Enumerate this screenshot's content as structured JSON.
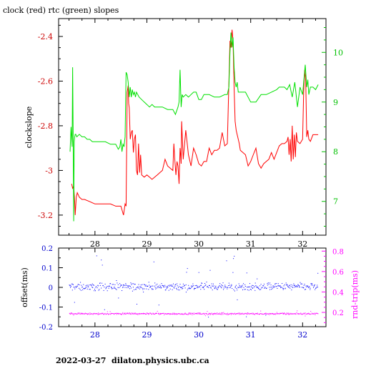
{
  "page": {
    "title": "clock (red) rtc (green) slopes",
    "footer": "2022-03-27  dilaton.physics.ubc.ca"
  },
  "colors": {
    "red": "#ff0000",
    "green": "#00e000",
    "blue": "#0000ff",
    "magenta": "#ff00ff",
    "axis": "#000000"
  },
  "chart_data": [
    {
      "type": "line",
      "title": "clock (red) rtc (green) slopes",
      "ylabel": "clockslope",
      "xlim": [
        27.3,
        32.45
      ],
      "ylim": [
        -3.29,
        -2.32
      ],
      "y2lim": [
        6.32,
        10.68
      ],
      "x_ticks": [
        28,
        29,
        30,
        31,
        32
      ],
      "y_ticks": [
        -3.2,
        -3,
        -2.8,
        -2.6,
        -2.4
      ],
      "y2_ticks": [
        7,
        8,
        9,
        10
      ],
      "grid": false,
      "series": [
        {
          "name": "clock",
          "color": "#ff0000",
          "axis": "left",
          "x": [
            27.55,
            27.57,
            27.59,
            27.61,
            27.62,
            27.64,
            27.66,
            27.68,
            27.7,
            27.75,
            27.8,
            27.9,
            28.0,
            28.1,
            28.2,
            28.3,
            28.4,
            28.5,
            28.55,
            28.58,
            28.6,
            28.62,
            28.64,
            28.65,
            28.66,
            28.68,
            28.7,
            28.72,
            28.74,
            28.76,
            28.78,
            28.8,
            28.82,
            28.84,
            28.86,
            28.88,
            28.9,
            28.95,
            29.0,
            29.05,
            29.1,
            29.2,
            29.25,
            29.3,
            29.35,
            29.4,
            29.45,
            29.5,
            29.52,
            29.54,
            29.56,
            29.58,
            29.6,
            29.62,
            29.64,
            29.65,
            29.66,
            29.67,
            29.7,
            29.75,
            29.8,
            29.85,
            29.9,
            29.95,
            30.0,
            30.05,
            30.1,
            30.15,
            30.2,
            30.25,
            30.3,
            30.35,
            30.4,
            30.45,
            30.5,
            30.55,
            30.6,
            30.62,
            30.64,
            30.66,
            30.68,
            30.7,
            30.72,
            30.74,
            30.76,
            30.78,
            30.8,
            30.85,
            30.9,
            30.95,
            31.0,
            31.05,
            31.1,
            31.15,
            31.2,
            31.25,
            31.3,
            31.35,
            31.4,
            31.45,
            31.5,
            31.55,
            31.6,
            31.65,
            31.7,
            31.72,
            31.74,
            31.76,
            31.78,
            31.8,
            31.82,
            31.84,
            31.86,
            31.88,
            31.9,
            31.95,
            32.0,
            32.02,
            32.04,
            32.06,
            32.08,
            32.1,
            32.12,
            32.15,
            32.2,
            32.25,
            32.3
          ],
          "values": [
            -3.06,
            -3.08,
            -3.07,
            -3.14,
            -3.2,
            -3.12,
            -3.1,
            -3.11,
            -3.12,
            -3.13,
            -3.13,
            -3.14,
            -3.15,
            -3.15,
            -3.15,
            -3.15,
            -3.16,
            -3.16,
            -3.2,
            -3.15,
            -3.16,
            -2.65,
            -2.62,
            -2.7,
            -2.72,
            -2.86,
            -2.83,
            -2.82,
            -2.92,
            -2.86,
            -2.84,
            -3.0,
            -3.02,
            -2.88,
            -3.01,
            -2.93,
            -3.02,
            -3.03,
            -3.02,
            -3.03,
            -3.04,
            -3.02,
            -3.01,
            -3.0,
            -2.95,
            -2.98,
            -2.99,
            -3.0,
            -2.88,
            -2.96,
            -3.02,
            -2.96,
            -2.98,
            -3.06,
            -2.9,
            -2.93,
            -2.97,
            -2.78,
            -2.95,
            -2.82,
            -2.93,
            -2.98,
            -2.9,
            -2.93,
            -2.97,
            -2.98,
            -2.96,
            -2.96,
            -2.9,
            -2.93,
            -2.91,
            -2.91,
            -2.9,
            -2.83,
            -2.89,
            -2.88,
            -2.42,
            -2.45,
            -2.37,
            -2.42,
            -2.63,
            -2.78,
            -2.82,
            -2.84,
            -2.86,
            -2.88,
            -2.91,
            -2.92,
            -2.93,
            -2.98,
            -2.96,
            -2.93,
            -2.9,
            -2.97,
            -2.99,
            -2.97,
            -2.96,
            -2.95,
            -2.92,
            -2.95,
            -2.92,
            -2.89,
            -2.88,
            -2.88,
            -2.87,
            -2.85,
            -2.93,
            -2.86,
            -2.96,
            -2.8,
            -2.95,
            -2.84,
            -2.94,
            -2.83,
            -2.87,
            -2.88,
            -2.86,
            -2.65,
            -2.55,
            -2.6,
            -2.85,
            -2.82,
            -2.86,
            -2.87,
            -2.84,
            -2.84,
            -2.84
          ]
        },
        {
          "name": "rtc",
          "color": "#00e000",
          "axis": "right",
          "x": [
            27.52,
            27.54,
            27.56,
            27.57,
            27.58,
            27.59,
            27.6,
            27.61,
            27.62,
            27.63,
            27.65,
            27.7,
            27.75,
            27.8,
            27.85,
            27.9,
            27.95,
            28.0,
            28.1,
            28.2,
            28.3,
            28.4,
            28.45,
            28.48,
            28.5,
            28.52,
            28.54,
            28.56,
            28.58,
            28.6,
            28.62,
            28.64,
            28.66,
            28.68,
            28.7,
            28.72,
            28.74,
            28.76,
            28.78,
            28.8,
            28.85,
            28.9,
            28.95,
            29.0,
            29.05,
            29.1,
            29.15,
            29.2,
            29.3,
            29.4,
            29.5,
            29.55,
            29.6,
            29.62,
            29.64,
            29.66,
            29.68,
            29.7,
            29.75,
            29.8,
            29.85,
            29.9,
            29.95,
            30.0,
            30.05,
            30.1,
            30.2,
            30.3,
            30.4,
            30.5,
            30.55,
            30.58,
            30.6,
            30.62,
            30.64,
            30.66,
            30.68,
            30.7,
            30.72,
            30.74,
            30.76,
            30.8,
            30.9,
            31.0,
            31.1,
            31.2,
            31.3,
            31.4,
            31.5,
            31.55,
            31.6,
            31.65,
            31.7,
            31.75,
            31.8,
            31.85,
            31.9,
            31.95,
            32.0,
            32.05,
            32.08,
            32.1,
            32.12,
            32.15,
            32.2,
            32.25,
            32.3
          ],
          "values": [
            8.0,
            8.5,
            8.1,
            9.7,
            8.4,
            6.6,
            8.2,
            8.3,
            8.35,
            8.35,
            8.3,
            8.35,
            8.3,
            8.3,
            8.25,
            8.25,
            8.2,
            8.2,
            8.2,
            8.2,
            8.15,
            8.15,
            8.05,
            8.1,
            8.25,
            8.0,
            8.15,
            8.1,
            8.3,
            9.6,
            9.55,
            9.4,
            9.1,
            9.3,
            9.1,
            9.25,
            9.15,
            9.2,
            9.1,
            9.2,
            9.1,
            9.05,
            9.0,
            8.95,
            8.9,
            8.95,
            8.9,
            8.9,
            8.9,
            8.85,
            8.85,
            8.75,
            8.9,
            9.0,
            9.65,
            8.9,
            9.15,
            9.1,
            9.15,
            9.1,
            9.15,
            9.2,
            9.2,
            9.05,
            9.05,
            9.15,
            9.15,
            9.1,
            9.1,
            9.15,
            9.15,
            9.3,
            10.0,
            10.4,
            10.1,
            10.3,
            9.7,
            9.4,
            9.3,
            9.4,
            9.2,
            9.2,
            9.2,
            9.0,
            9.0,
            9.15,
            9.15,
            9.2,
            9.25,
            9.3,
            9.3,
            9.3,
            9.25,
            9.35,
            9.1,
            9.4,
            8.9,
            9.3,
            9.15,
            9.75,
            9.3,
            9.45,
            9.15,
            9.3,
            9.3,
            9.25,
            9.35
          ]
        }
      ]
    },
    {
      "type": "scatter",
      "ylabel": "offset(ms)",
      "y2label": "rnd-trip(ms)",
      "xlim": [
        27.3,
        32.45
      ],
      "ylim": [
        -0.2,
        0.2
      ],
      "y2lim": [
        0.06,
        0.83
      ],
      "x_ticks": [
        28,
        29,
        30,
        31,
        32
      ],
      "y_ticks": [
        -0.2,
        -0.1,
        0,
        0.1,
        0.2
      ],
      "y2_ticks": [
        0.2,
        0.4,
        0.6,
        0.8
      ],
      "grid": false,
      "series": [
        {
          "name": "offset",
          "color": "#0000ff",
          "axis": "left",
          "marker": "dot",
          "x_range": [
            27.5,
            32.3
          ],
          "center": 0.005,
          "spread": 0.03,
          "outliers_spread": 0.16
        },
        {
          "name": "rnd-trip",
          "color": "#ff00ff",
          "axis": "right",
          "marker": "dot",
          "x_range": [
            27.5,
            32.3
          ],
          "center": 0.19,
          "spread": 0.012,
          "outliers_spread": 0.03
        }
      ]
    }
  ]
}
